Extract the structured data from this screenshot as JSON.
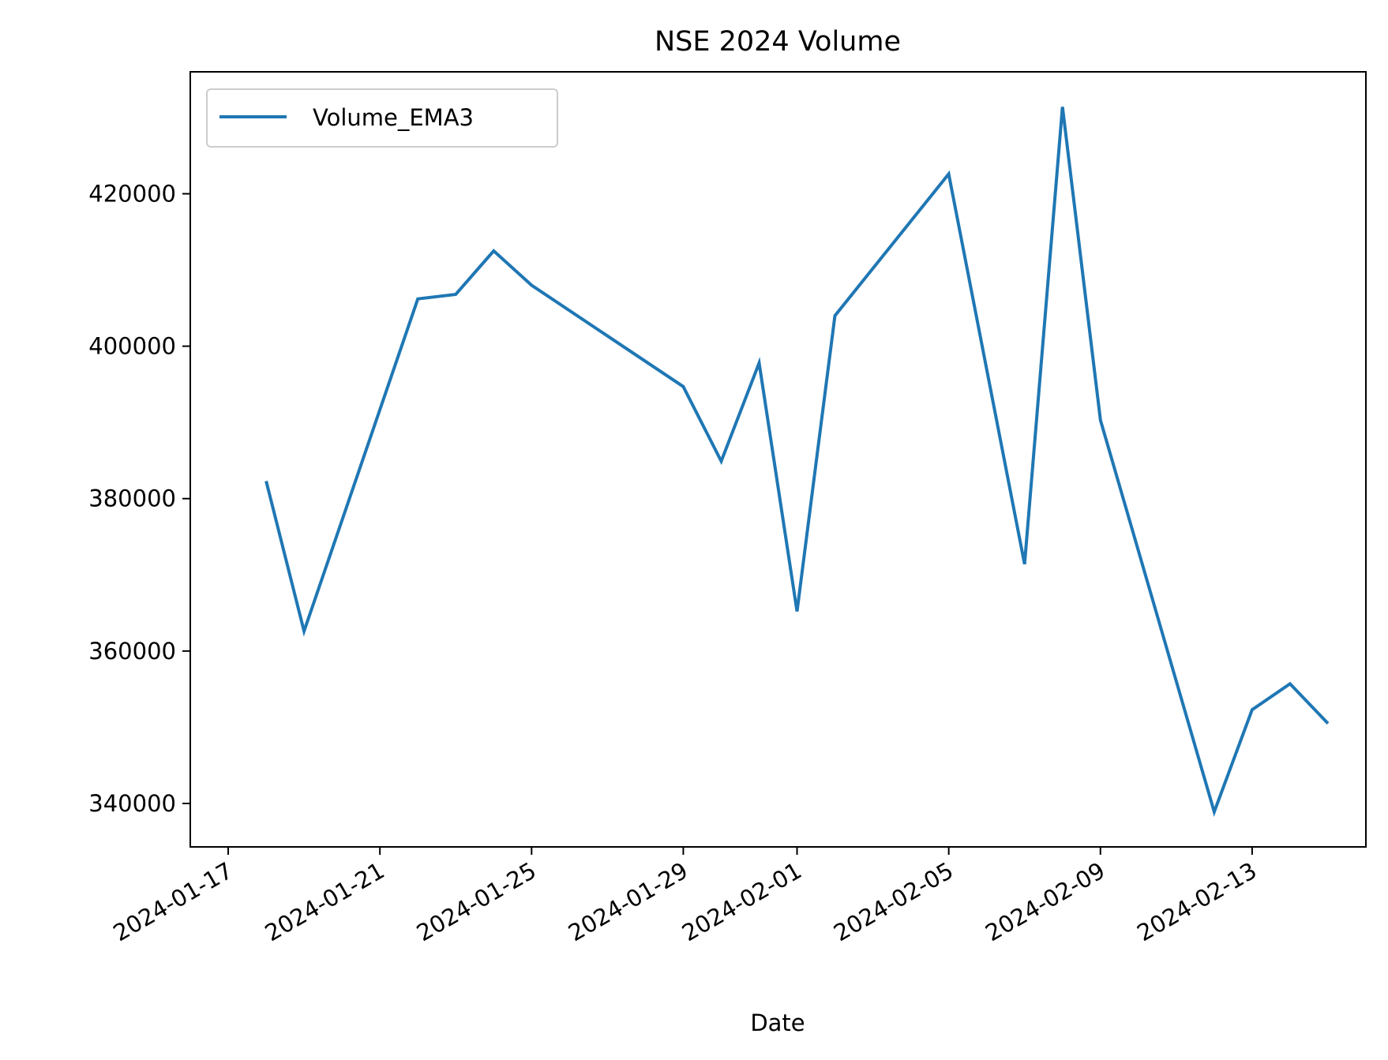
{
  "chart_data": {
    "type": "line",
    "title": "NSE 2024 Volume",
    "xlabel": "Date",
    "ylabel": "",
    "x_tick_labels": [
      "2024-01-17",
      "2024-01-21",
      "2024-01-25",
      "2024-01-29",
      "2024-02-01",
      "2024-02-05",
      "2024-02-09",
      "2024-02-13"
    ],
    "y_tick_values": [
      340000,
      360000,
      380000,
      400000,
      420000
    ],
    "y_tick_labels": [
      "340000",
      "360000",
      "380000",
      "400000",
      "420000"
    ],
    "xlim": [
      "2024-01-16",
      "2024-02-16"
    ],
    "ylim": [
      334300,
      436000
    ],
    "grid": false,
    "legend_position": "top-left",
    "series": [
      {
        "name": "Volume_EMA3",
        "color": "#1f77b4",
        "x": [
          "2024-01-18",
          "2024-01-19",
          "2024-01-22",
          "2024-01-23",
          "2024-01-24",
          "2024-01-25",
          "2024-01-29",
          "2024-01-30",
          "2024-01-31",
          "2024-02-01",
          "2024-02-02",
          "2024-02-05",
          "2024-02-07",
          "2024-02-08",
          "2024-02-09",
          "2024-02-12",
          "2024-02-13",
          "2024-02-14",
          "2024-02-15"
        ],
        "y": [
          382300,
          362600,
          406200,
          406800,
          412500,
          408000,
          394700,
          384900,
          397800,
          365200,
          404000,
          422600,
          371400,
          431400,
          390300,
          338900,
          352300,
          355700,
          350500
        ]
      }
    ]
  }
}
